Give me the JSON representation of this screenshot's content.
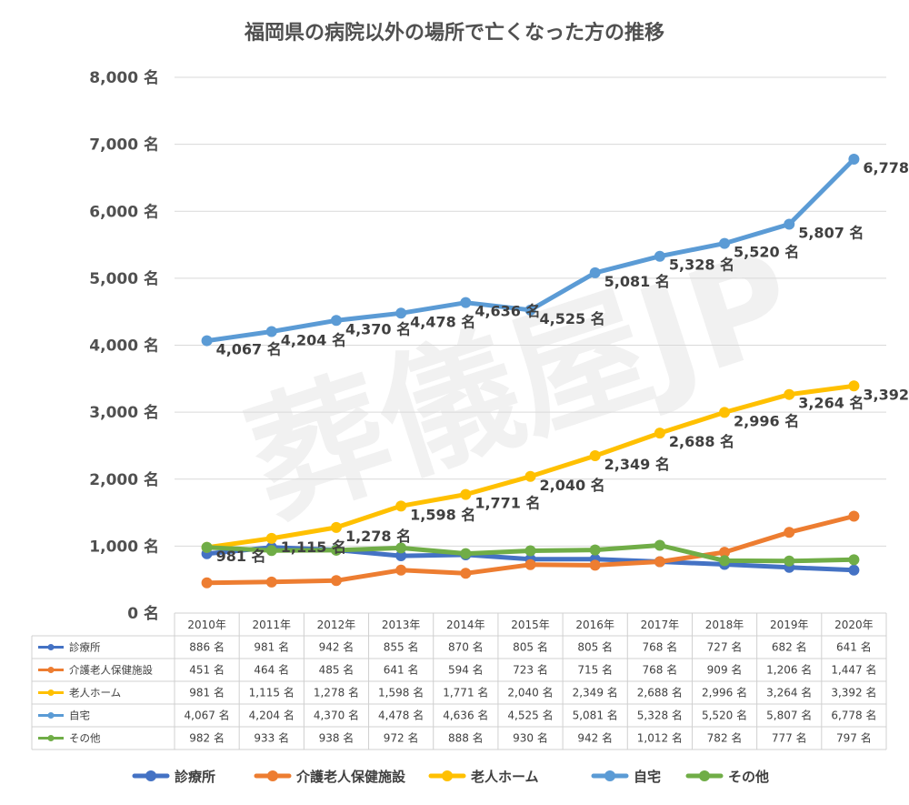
{
  "chart_data": {
    "type": "line",
    "title": "福岡県の病院以外の場所で亡くなった方の推移",
    "watermark": "葬儀屋JP",
    "unit": "名",
    "categories": [
      "2010年",
      "2011年",
      "2012年",
      "2013年",
      "2014年",
      "2015年",
      "2016年",
      "2017年",
      "2018年",
      "2019年",
      "2020年"
    ],
    "ylim": [
      0,
      8000
    ],
    "yticks": [
      0,
      1000,
      2000,
      3000,
      4000,
      5000,
      6000,
      7000,
      8000
    ],
    "ytick_labels": [
      "0 名",
      "1,000 名",
      "2,000 名",
      "3,000 名",
      "4,000 名",
      "5,000 名",
      "6,000 名",
      "7,000 名",
      "8,000 名"
    ],
    "grid": true,
    "legend_position": "bottom",
    "series": [
      {
        "name": "診療所",
        "color": "#4472c4",
        "show_labels": false,
        "values": [
          886,
          981,
          942,
          855,
          870,
          805,
          805,
          768,
          727,
          682,
          641
        ],
        "labels": [
          "886 名",
          "981 名",
          "942 名",
          "855 名",
          "870 名",
          "805 名",
          "805 名",
          "768 名",
          "727 名",
          "682 名",
          "641 名"
        ]
      },
      {
        "name": "介護老人保健施設",
        "color": "#ed7d31",
        "show_labels": false,
        "values": [
          451,
          464,
          485,
          641,
          594,
          723,
          715,
          768,
          909,
          1206,
          1447
        ],
        "labels": [
          "451 名",
          "464 名",
          "485 名",
          "641 名",
          "594 名",
          "723 名",
          "715 名",
          "768 名",
          "909 名",
          "1,206 名",
          "1,447 名"
        ]
      },
      {
        "name": "老人ホーム",
        "color": "#ffc000",
        "show_labels": true,
        "values": [
          981,
          1115,
          1278,
          1598,
          1771,
          2040,
          2349,
          2688,
          2996,
          3264,
          3392
        ],
        "labels": [
          "981 名",
          "1,115 名",
          "1,278 名",
          "1,598 名",
          "1,771 名",
          "2,040 名",
          "2,349 名",
          "2,688 名",
          "2,996 名",
          "3,264 名",
          "3,392 名"
        ]
      },
      {
        "name": "自宅",
        "color": "#5b9bd5",
        "show_labels": true,
        "values": [
          4067,
          4204,
          4370,
          4478,
          4636,
          4525,
          5081,
          5328,
          5520,
          5807,
          6778
        ],
        "labels": [
          "4,067 名",
          "4,204 名",
          "4,370 名",
          "4,478 名",
          "4,636 名",
          "4,525 名",
          "5,081 名",
          "5,328 名",
          "5,520 名",
          "5,807 名",
          "6,778 名"
        ]
      },
      {
        "name": "その他",
        "color": "#70ad47",
        "show_labels": false,
        "values": [
          982,
          933,
          938,
          972,
          888,
          930,
          942,
          1012,
          782,
          777,
          797
        ],
        "labels": [
          "982 名",
          "933 名",
          "938 名",
          "972 名",
          "888 名",
          "930 名",
          "942 名",
          "1,012 名",
          "782 名",
          "777 名",
          "797 名"
        ]
      }
    ]
  }
}
